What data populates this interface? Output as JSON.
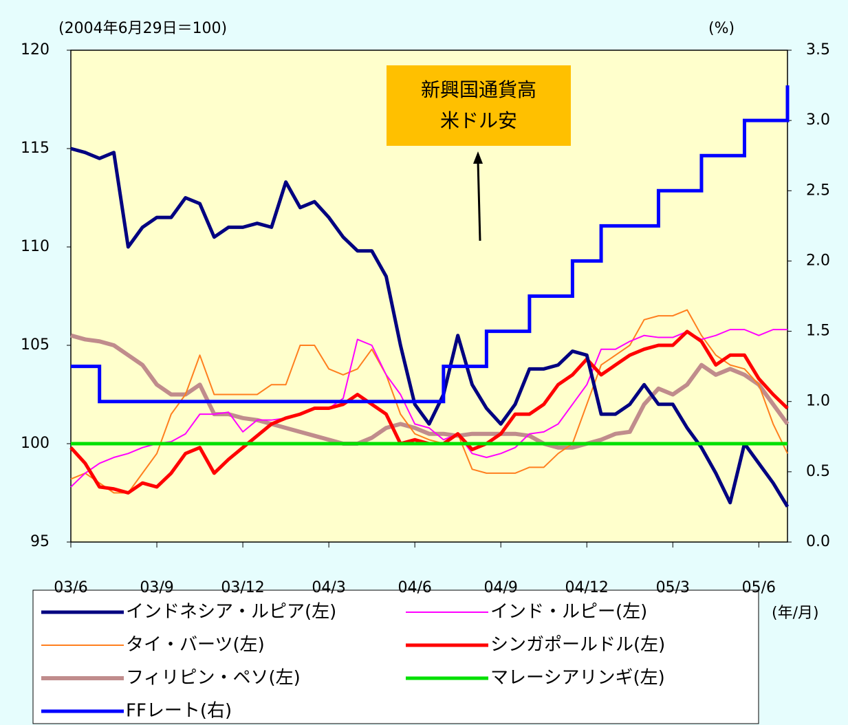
{
  "chart_data": {
    "type": "line",
    "ylabel": "(2004年6月29日＝100)",
    "y2label": "(%)",
    "xlabel": "(年/月)",
    "annotation": [
      "新興国通貨高",
      "米ドル安"
    ],
    "categories": [
      "03/6",
      null,
      null,
      null,
      null,
      null,
      "03/9",
      null,
      null,
      null,
      null,
      null,
      "03/12",
      null,
      null,
      null,
      null,
      null,
      "04/3",
      null,
      null,
      null,
      null,
      null,
      "04/6",
      null,
      null,
      null,
      null,
      null,
      "04/9",
      null,
      null,
      null,
      null,
      null,
      "04/12",
      null,
      null,
      null,
      null,
      null,
      "05/3",
      null,
      null,
      null,
      null,
      null,
      "05/6",
      null,
      null
    ],
    "ylim": [
      95,
      120
    ],
    "yticks": [
      95,
      100,
      105,
      110,
      115,
      120
    ],
    "y2lim": [
      0,
      3.5
    ],
    "y2ticks": [
      {
        "value": 0,
        "label": "0.0"
      },
      0.5,
      {
        "value": 1,
        "label": "1.0"
      },
      1.5,
      {
        "value": 2,
        "label": "2.0"
      },
      2.5,
      {
        "value": 3,
        "label": "3.0"
      },
      3.5
    ],
    "series": [
      {
        "name": "インドネシア・ルピア(左)",
        "color": "#000080",
        "line_width": 5,
        "values": [
          115,
          114.8,
          114.5,
          114.8,
          110,
          111,
          111.5,
          111.5,
          112.5,
          112.2,
          110.5,
          111,
          111,
          111.2,
          111,
          113.3,
          112,
          112.3,
          111.5,
          110.5,
          109.8,
          109.8,
          108.5,
          105,
          102,
          101,
          102.5,
          105.5,
          103,
          101.8,
          101,
          102,
          103.8,
          103.8,
          104,
          104.7,
          104.5,
          101.5,
          101.5,
          102,
          103,
          102,
          102,
          100.8,
          99.8,
          98.5,
          97,
          100,
          99,
          98,
          96.8
        ]
      },
      {
        "name": "インド・ルピー(左)",
        "color": "#ff00ff",
        "line_width": 2,
        "values": [
          97.8,
          98.5,
          99,
          99.3,
          99.5,
          99.8,
          100,
          100.1,
          100.5,
          101.5,
          101.5,
          101.6,
          100.6,
          101.2,
          101.2,
          101.3,
          101.5,
          101.8,
          101.8,
          102.3,
          105.3,
          105,
          103.5,
          102.5,
          101,
          100.8,
          100.2,
          100.5,
          99.5,
          99.3,
          99.5,
          99.8,
          100.5,
          100.6,
          101,
          102,
          103,
          104.8,
          104.8,
          105.2,
          105.5,
          105.4,
          105.4,
          105.7,
          105.3,
          105.5,
          105.8,
          105.8,
          105.5,
          105.8,
          105.8
        ]
      },
      {
        "name": "タイ・バーツ(左)",
        "color": "#ff7f1e",
        "line_width": 2,
        "values": [
          98.2,
          98.5,
          98,
          97.5,
          97.5,
          98.5,
          99.5,
          101.5,
          102.5,
          104.5,
          102.5,
          102.5,
          102.5,
          102.5,
          103,
          103,
          105,
          105,
          103.8,
          103.5,
          103.8,
          104.8,
          103.5,
          101.5,
          100.5,
          100.2,
          100,
          100.5,
          98.7,
          98.5,
          98.5,
          98.5,
          98.8,
          98.8,
          99.5,
          100,
          102,
          104,
          104.5,
          105,
          106.3,
          106.5,
          106.5,
          106.8,
          105.5,
          104.5,
          104,
          103.8,
          103,
          101,
          99.5
        ]
      },
      {
        "name": "シンガポールドル(左)",
        "color": "#ff0000",
        "line_width": 5,
        "values": [
          99.8,
          99,
          97.8,
          97.7,
          97.5,
          98,
          97.8,
          98.5,
          99.5,
          99.8,
          98.5,
          99.2,
          99.8,
          100.4,
          101,
          101.3,
          101.5,
          101.8,
          101.8,
          102,
          102.5,
          102,
          101.5,
          100,
          100.2,
          100,
          100,
          100.5,
          99.7,
          100,
          100.5,
          101.5,
          101.5,
          102,
          103,
          103.5,
          104.3,
          103.5,
          104,
          104.5,
          104.8,
          105,
          105,
          105.7,
          105.2,
          104,
          104.5,
          104.5,
          103.3,
          102.5,
          101.8
        ]
      },
      {
        "name": "フィリピン・ペソ(左)",
        "color": "#c08c8c",
        "line_width": 6,
        "values": [
          105.5,
          105.3,
          105.2,
          105,
          104.5,
          104,
          103,
          102.5,
          102.5,
          103,
          101.5,
          101.5,
          101.3,
          101.2,
          101,
          100.8,
          100.6,
          100.4,
          100.2,
          100,
          100,
          100.3,
          100.8,
          101,
          100.8,
          100.5,
          100.5,
          100.4,
          100.5,
          100.5,
          100.5,
          100.5,
          100.4,
          100,
          99.8,
          99.8,
          100,
          100.2,
          100.5,
          100.6,
          102,
          102.8,
          102.5,
          103,
          104,
          103.5,
          103.8,
          103.5,
          103,
          102,
          101
        ]
      },
      {
        "name": "マレーシアリンギ(左)",
        "color": "#00e000",
        "line_width": 5,
        "values": [
          100,
          100,
          100,
          100,
          100,
          100,
          100,
          100,
          100,
          100,
          100,
          100,
          100,
          100,
          100,
          100,
          100,
          100,
          100,
          100,
          100,
          100,
          100,
          100,
          100,
          100,
          100,
          100,
          100,
          100,
          100,
          100,
          100,
          100,
          100,
          100,
          100,
          100,
          100,
          100,
          100,
          100,
          100,
          100,
          100,
          100,
          100,
          100,
          100,
          100,
          100
        ]
      },
      {
        "name": "FFレート(右)",
        "color": "#0000ff",
        "line_width": 5,
        "axis": "y2",
        "step": true,
        "values": [
          1.25,
          1.25,
          1,
          1,
          1,
          1,
          1,
          1,
          1,
          1,
          1,
          1,
          1,
          1,
          1,
          1,
          1,
          1,
          1,
          1,
          1,
          1,
          1,
          1,
          1,
          1,
          1.25,
          1.25,
          1.25,
          1.5,
          1.5,
          1.5,
          1.75,
          1.75,
          1.75,
          2,
          2,
          2.25,
          2.25,
          2.25,
          2.25,
          2.5,
          2.5,
          2.5,
          2.75,
          2.75,
          2.75,
          3,
          3,
          3,
          3.25
        ]
      }
    ]
  }
}
